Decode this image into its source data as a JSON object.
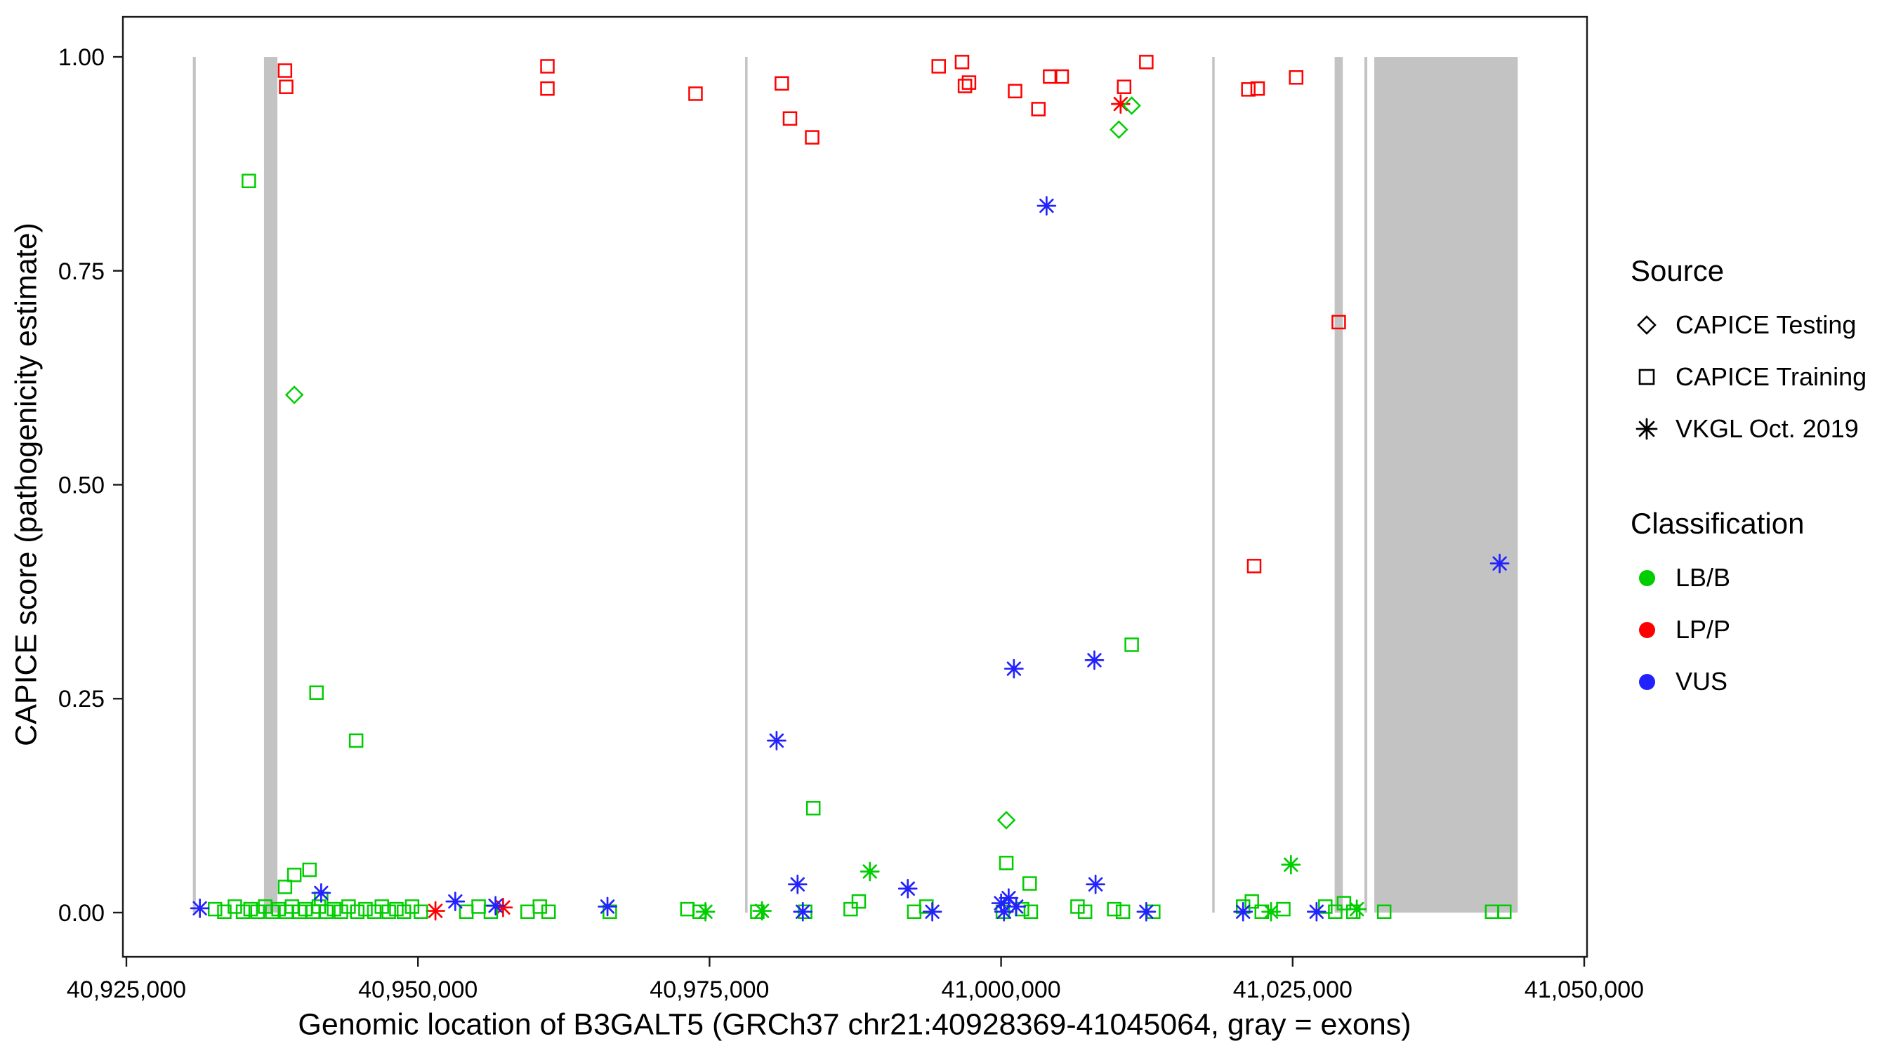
{
  "figure": {
    "background": "#FFFFFF"
  },
  "legend": {
    "source": {
      "title": "Source",
      "items": [
        {
          "label": "CAPICE Testing",
          "shape": "diamond"
        },
        {
          "label": "CAPICE Training",
          "shape": "square"
        },
        {
          "label": "VKGL Oct. 2019",
          "shape": "asterisk"
        }
      ]
    },
    "classification": {
      "title": "Classification",
      "items": [
        {
          "label": "LB/B",
          "color": "#00CD00"
        },
        {
          "label": "LP/P",
          "color": "#FF0000"
        },
        {
          "label": "VUS",
          "color": "#2222FF"
        }
      ]
    }
  },
  "chart_data": {
    "type": "scatter",
    "title": "",
    "xlabel": "Genomic location of B3GALT5 (GRCh37 chr21:40928369-41045064, gray = exons)",
    "ylabel": "CAPICE score (pathogenicity estimate)",
    "xlim": [
      40928369,
      41045064
    ],
    "ylim": [
      0,
      1
    ],
    "x_panel": [
      40924700,
      41050240
    ],
    "y_panel": [
      -0.0517,
      1.0468
    ],
    "grid": "off",
    "legend_position": "right",
    "x_ticks": [
      {
        "v": 40925000,
        "label": "40,925,000"
      },
      {
        "v": 40950000,
        "label": "40,950,000"
      },
      {
        "v": 40975000,
        "label": "40,975,000"
      },
      {
        "v": 41000000,
        "label": "41,000,000"
      },
      {
        "v": 41025000,
        "label": "41,025,000"
      },
      {
        "v": 41050000,
        "label": "41,050,000"
      }
    ],
    "y_ticks": [
      {
        "v": 0,
        "label": "0.00"
      },
      {
        "v": 0.25,
        "label": "0.25"
      },
      {
        "v": 0.5,
        "label": "0.50"
      },
      {
        "v": 0.75,
        "label": "0.75"
      },
      {
        "v": 1,
        "label": "1.00"
      }
    ],
    "exon_color": "#C3C3C3",
    "exons": [
      [
        40930700,
        40930950
      ],
      [
        40936800,
        40937950
      ],
      [
        40978050,
        40978250
      ],
      [
        41018100,
        41018300
      ],
      [
        41028600,
        41029300
      ],
      [
        41031150,
        41031400
      ],
      [
        41032000,
        41044300
      ]
    ],
    "shape_map": {
      "testing": "diamond",
      "training": "square",
      "vkgl": "asterisk"
    },
    "source_labels": {
      "testing": "CAPICE Testing",
      "training": "CAPICE Training",
      "vkgl": "VKGL Oct. 2019"
    },
    "color_map": {
      "LB/B": "#00CD00",
      "LP/P": "#FF0000",
      "VUS": "#2222FF"
    },
    "points_columns": [
      "x",
      "y",
      "source",
      "classification"
    ],
    "points": [
      [
        40938600,
        0.984,
        "training",
        "LP/P"
      ],
      [
        40938700,
        0.965,
        "training",
        "LP/P"
      ],
      [
        40961100,
        0.989,
        "training",
        "LP/P"
      ],
      [
        40961100,
        0.963,
        "training",
        "LP/P"
      ],
      [
        40973800,
        0.957,
        "training",
        "LP/P"
      ],
      [
        40981200,
        0.969,
        "training",
        "LP/P"
      ],
      [
        40981900,
        0.928,
        "training",
        "LP/P"
      ],
      [
        40983800,
        0.906,
        "training",
        "LP/P"
      ],
      [
        40994650,
        0.989,
        "training",
        "LP/P"
      ],
      [
        40996650,
        0.994,
        "training",
        "LP/P"
      ],
      [
        40996900,
        0.966,
        "training",
        "LP/P"
      ],
      [
        40997250,
        0.97,
        "training",
        "LP/P"
      ],
      [
        41001200,
        0.96,
        "training",
        "LP/P"
      ],
      [
        41003200,
        0.939,
        "training",
        "LP/P"
      ],
      [
        41004200,
        0.977,
        "training",
        "LP/P"
      ],
      [
        41005200,
        0.977,
        "training",
        "LP/P"
      ],
      [
        41010550,
        0.965,
        "training",
        "LP/P"
      ],
      [
        41012450,
        0.994,
        "training",
        "LP/P"
      ],
      [
        41021200,
        0.962,
        "training",
        "LP/P"
      ],
      [
        41022000,
        0.963,
        "training",
        "LP/P"
      ],
      [
        41025300,
        0.976,
        "training",
        "LP/P"
      ],
      [
        41028950,
        0.69,
        "training",
        "LP/P"
      ],
      [
        41021700,
        0.405,
        "training",
        "LP/P"
      ],
      [
        41010250,
        0.945,
        "vkgl",
        "LP/P"
      ],
      [
        40951500,
        0.002,
        "vkgl",
        "LP/P"
      ],
      [
        40957300,
        0.006,
        "vkgl",
        "LP/P"
      ],
      [
        40939400,
        0.605,
        "testing",
        "LB/B"
      ],
      [
        41011200,
        0.943,
        "testing",
        "LB/B"
      ],
      [
        41010100,
        0.915,
        "testing",
        "LB/B"
      ],
      [
        41000450,
        0.108,
        "testing",
        "LB/B"
      ],
      [
        40935500,
        0.855,
        "training",
        "LB/B"
      ],
      [
        40941300,
        0.257,
        "training",
        "LB/B"
      ],
      [
        40944700,
        0.201,
        "training",
        "LB/B"
      ],
      [
        40983900,
        0.122,
        "training",
        "LB/B"
      ],
      [
        41011200,
        0.313,
        "training",
        "LB/B"
      ],
      [
        41000450,
        0.058,
        "training",
        "LB/B"
      ],
      [
        41002450,
        0.034,
        "training",
        "LB/B"
      ],
      [
        40939400,
        0.044,
        "training",
        "LB/B"
      ],
      [
        40940700,
        0.05,
        "training",
        "LB/B"
      ],
      [
        40938600,
        0.03,
        "training",
        "LB/B"
      ],
      [
        40941700,
        0.016,
        "training",
        "LB/B"
      ],
      [
        40932600,
        0.004,
        "training",
        "LB/B"
      ],
      [
        40933400,
        0.001,
        "training",
        "LB/B"
      ],
      [
        40934300,
        0.007,
        "training",
        "LB/B"
      ],
      [
        40935000,
        0.001,
        "training",
        "LB/B"
      ],
      [
        40935650,
        0.004,
        "training",
        "LB/B"
      ],
      [
        40936250,
        0.001,
        "training",
        "LB/B"
      ],
      [
        40936900,
        0.007,
        "training",
        "LB/B"
      ],
      [
        40937500,
        0.001,
        "training",
        "LB/B"
      ],
      [
        40938050,
        0.004,
        "training",
        "LB/B"
      ],
      [
        40938700,
        0.001,
        "training",
        "LB/B"
      ],
      [
        40939200,
        0.007,
        "training",
        "LB/B"
      ],
      [
        40939850,
        0.001,
        "training",
        "LB/B"
      ],
      [
        40940350,
        0.004,
        "training",
        "LB/B"
      ],
      [
        40941000,
        0.001,
        "training",
        "LB/B"
      ],
      [
        40941500,
        0.007,
        "training",
        "LB/B"
      ],
      [
        40942150,
        0.001,
        "training",
        "LB/B"
      ],
      [
        40942800,
        0.004,
        "training",
        "LB/B"
      ],
      [
        40943400,
        0.001,
        "training",
        "LB/B"
      ],
      [
        40944050,
        0.007,
        "training",
        "LB/B"
      ],
      [
        40944800,
        0.001,
        "training",
        "LB/B"
      ],
      [
        40945500,
        0.004,
        "training",
        "LB/B"
      ],
      [
        40946250,
        0.001,
        "training",
        "LB/B"
      ],
      [
        40946900,
        0.007,
        "training",
        "LB/B"
      ],
      [
        40947500,
        0.001,
        "training",
        "LB/B"
      ],
      [
        40948150,
        0.004,
        "training",
        "LB/B"
      ],
      [
        40948800,
        0.001,
        "training",
        "LB/B"
      ],
      [
        40949500,
        0.007,
        "training",
        "LB/B"
      ],
      [
        40950250,
        0.001,
        "training",
        "LB/B"
      ],
      [
        40954150,
        0.001,
        "training",
        "LB/B"
      ],
      [
        40955200,
        0.007,
        "training",
        "LB/B"
      ],
      [
        40956250,
        0.001,
        "training",
        "LB/B"
      ],
      [
        40959400,
        0.001,
        "training",
        "LB/B"
      ],
      [
        40960450,
        0.007,
        "training",
        "LB/B"
      ],
      [
        40961200,
        0.001,
        "training",
        "LB/B"
      ],
      [
        40966450,
        0.001,
        "training",
        "LB/B"
      ],
      [
        40973100,
        0.004,
        "training",
        "LB/B"
      ],
      [
        40974150,
        0.001,
        "training",
        "LB/B"
      ],
      [
        40979100,
        0.001,
        "training",
        "LB/B"
      ],
      [
        40983200,
        0.001,
        "training",
        "LB/B"
      ],
      [
        40987100,
        0.004,
        "training",
        "LB/B"
      ],
      [
        40987800,
        0.013,
        "training",
        "LB/B"
      ],
      [
        40992550,
        0.001,
        "training",
        "LB/B"
      ],
      [
        40993600,
        0.007,
        "training",
        "LB/B"
      ],
      [
        41000150,
        0.001,
        "training",
        "LB/B"
      ],
      [
        41001800,
        0.004,
        "training",
        "LB/B"
      ],
      [
        41002550,
        0.001,
        "training",
        "LB/B"
      ],
      [
        41006550,
        0.007,
        "training",
        "LB/B"
      ],
      [
        41007200,
        0.001,
        "training",
        "LB/B"
      ],
      [
        41009700,
        0.004,
        "training",
        "LB/B"
      ],
      [
        41010450,
        0.001,
        "training",
        "LB/B"
      ],
      [
        41013050,
        0.001,
        "training",
        "LB/B"
      ],
      [
        41020750,
        0.007,
        "training",
        "LB/B"
      ],
      [
        41021500,
        0.013,
        "training",
        "LB/B"
      ],
      [
        41022350,
        0.001,
        "training",
        "LB/B"
      ],
      [
        41024200,
        0.004,
        "training",
        "LB/B"
      ],
      [
        41027800,
        0.007,
        "training",
        "LB/B"
      ],
      [
        41028650,
        0.001,
        "training",
        "LB/B"
      ],
      [
        41029400,
        0.011,
        "training",
        "LB/B"
      ],
      [
        41030200,
        0.001,
        "training",
        "LB/B"
      ],
      [
        41032850,
        0.001,
        "training",
        "LB/B"
      ],
      [
        41042100,
        0.001,
        "training",
        "LB/B"
      ],
      [
        41043150,
        0.001,
        "training",
        "LB/B"
      ],
      [
        40988750,
        0.048,
        "vkgl",
        "LB/B"
      ],
      [
        41024850,
        0.056,
        "vkgl",
        "LB/B"
      ],
      [
        40974650,
        0.001,
        "vkgl",
        "LB/B"
      ],
      [
        40979500,
        0.002,
        "vkgl",
        "LB/B"
      ],
      [
        41023150,
        0.001,
        "vkgl",
        "LB/B"
      ],
      [
        41030500,
        0.004,
        "vkgl",
        "LB/B"
      ],
      [
        41003900,
        0.826,
        "vkgl",
        "VUS"
      ],
      [
        41001100,
        0.285,
        "vkgl",
        "VUS"
      ],
      [
        41008000,
        0.295,
        "vkgl",
        "VUS"
      ],
      [
        40980750,
        0.201,
        "vkgl",
        "VUS"
      ],
      [
        41042750,
        0.408,
        "vkgl",
        "VUS"
      ],
      [
        40931300,
        0.005,
        "vkgl",
        "VUS"
      ],
      [
        40941700,
        0.023,
        "vkgl",
        "VUS"
      ],
      [
        40953200,
        0.013,
        "vkgl",
        "VUS"
      ],
      [
        40956650,
        0.008,
        "vkgl",
        "VUS"
      ],
      [
        40966250,
        0.007,
        "vkgl",
        "VUS"
      ],
      [
        40982550,
        0.033,
        "vkgl",
        "VUS"
      ],
      [
        40983000,
        0.001,
        "vkgl",
        "VUS"
      ],
      [
        40992000,
        0.028,
        "vkgl",
        "VUS"
      ],
      [
        40994100,
        0.001,
        "vkgl",
        "VUS"
      ],
      [
        41000000,
        0.011,
        "vkgl",
        "VUS"
      ],
      [
        41000650,
        0.017,
        "vkgl",
        "VUS"
      ],
      [
        41001300,
        0.007,
        "vkgl",
        "VUS"
      ],
      [
        41000250,
        0.001,
        "vkgl",
        "VUS"
      ],
      [
        41008100,
        0.033,
        "vkgl",
        "VUS"
      ],
      [
        41012450,
        0.001,
        "vkgl",
        "VUS"
      ],
      [
        41020750,
        0.001,
        "vkgl",
        "VUS"
      ],
      [
        41027050,
        0.001,
        "vkgl",
        "VUS"
      ]
    ]
  }
}
